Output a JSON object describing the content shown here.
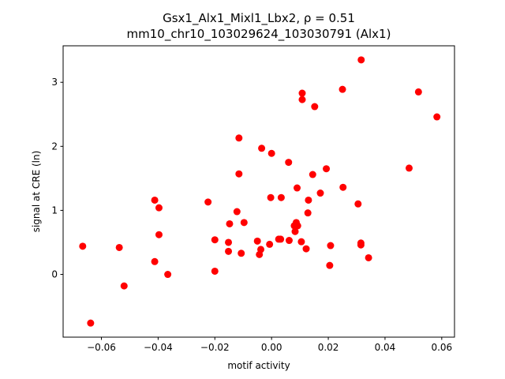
{
  "chart_data": {
    "type": "scatter",
    "title_line1": "Gsx1_Alx1_Mixl1_Lbx2, ρ = 0.51",
    "title_line2": "mm10_chr10_103029624_103030791 (Alx1)",
    "xlabel": "motif activity",
    "ylabel": "signal at CRE (ln)",
    "xlim": [
      -0.0735,
      0.0645
    ],
    "ylim": [
      -0.98,
      3.57
    ],
    "xticks": [
      -0.06,
      -0.04,
      -0.02,
      0.0,
      0.02,
      0.04,
      0.06
    ],
    "xtick_labels": [
      "−0.06",
      "−0.04",
      "−0.02",
      "0.00",
      "0.02",
      "0.04",
      "0.06"
    ],
    "yticks": [
      0,
      1,
      2,
      3
    ],
    "ytick_labels": [
      "0",
      "1",
      "2",
      "3"
    ],
    "grid": false,
    "marker_color": "#ff0000",
    "points": [
      {
        "x": -0.0666,
        "y": 0.44
      },
      {
        "x": -0.0638,
        "y": -0.76
      },
      {
        "x": -0.0537,
        "y": 0.42
      },
      {
        "x": -0.052,
        "y": -0.18
      },
      {
        "x": -0.0412,
        "y": 1.16
      },
      {
        "x": -0.0412,
        "y": 0.2
      },
      {
        "x": -0.0397,
        "y": 1.04
      },
      {
        "x": -0.0397,
        "y": 0.62
      },
      {
        "x": -0.0366,
        "y": 0.0
      },
      {
        "x": -0.0224,
        "y": 1.13
      },
      {
        "x": -0.02,
        "y": 0.54
      },
      {
        "x": -0.02,
        "y": 0.05
      },
      {
        "x": -0.0152,
        "y": 0.5
      },
      {
        "x": -0.0152,
        "y": 0.36
      },
      {
        "x": -0.0148,
        "y": 0.79
      },
      {
        "x": -0.0122,
        "y": 0.98
      },
      {
        "x": -0.0115,
        "y": 2.13
      },
      {
        "x": -0.0115,
        "y": 1.57
      },
      {
        "x": -0.0107,
        "y": 0.33
      },
      {
        "x": -0.0097,
        "y": 0.81
      },
      {
        "x": -0.005,
        "y": 0.52
      },
      {
        "x": -0.0043,
        "y": 0.31
      },
      {
        "x": -0.0038,
        "y": 0.39
      },
      {
        "x": -0.0035,
        "y": 1.97
      },
      {
        "x": -0.0007,
        "y": 0.47
      },
      {
        "x": -0.0003,
        "y": 1.2
      },
      {
        "x": 0.0,
        "y": 1.89
      },
      {
        "x": 0.0025,
        "y": 0.55
      },
      {
        "x": 0.0032,
        "y": 0.55
      },
      {
        "x": 0.0034,
        "y": 1.2
      },
      {
        "x": 0.006,
        "y": 1.75
      },
      {
        "x": 0.0062,
        "y": 0.53
      },
      {
        "x": 0.008,
        "y": 0.76
      },
      {
        "x": 0.0083,
        "y": 0.67
      },
      {
        "x": 0.0087,
        "y": 0.81
      },
      {
        "x": 0.009,
        "y": 1.35
      },
      {
        "x": 0.0092,
        "y": 0.76
      },
      {
        "x": 0.0105,
        "y": 0.51
      },
      {
        "x": 0.0108,
        "y": 2.83
      },
      {
        "x": 0.0108,
        "y": 2.73
      },
      {
        "x": 0.0122,
        "y": 0.4
      },
      {
        "x": 0.0128,
        "y": 0.96
      },
      {
        "x": 0.013,
        "y": 1.16
      },
      {
        "x": 0.0145,
        "y": 1.56
      },
      {
        "x": 0.0152,
        "y": 2.62
      },
      {
        "x": 0.0172,
        "y": 1.27
      },
      {
        "x": 0.0193,
        "y": 1.65
      },
      {
        "x": 0.0205,
        "y": 0.14
      },
      {
        "x": 0.0208,
        "y": 0.45
      },
      {
        "x": 0.025,
        "y": 2.89
      },
      {
        "x": 0.0252,
        "y": 1.36
      },
      {
        "x": 0.0305,
        "y": 1.1
      },
      {
        "x": 0.0315,
        "y": 0.49
      },
      {
        "x": 0.0315,
        "y": 0.46
      },
      {
        "x": 0.0316,
        "y": 3.35
      },
      {
        "x": 0.0342,
        "y": 0.26
      },
      {
        "x": 0.0485,
        "y": 1.66
      },
      {
        "x": 0.0518,
        "y": 2.85
      },
      {
        "x": 0.0583,
        "y": 2.46
      }
    ]
  }
}
